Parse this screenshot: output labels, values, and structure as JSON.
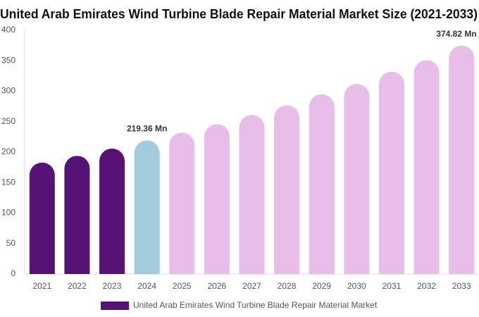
{
  "chart_data": {
    "type": "bar",
    "title": "United Arab Emirates Wind Turbine Blade Repair Material Market Size (2021-2033)",
    "categories": [
      "2021",
      "2022",
      "2023",
      "2024",
      "2025",
      "2026",
      "2027",
      "2028",
      "2029",
      "2030",
      "2031",
      "2032",
      "2033"
    ],
    "series": [
      {
        "name": "United Arab Emirates Wind Turbine Blade Repair Material Market",
        "color": "#561275",
        "values": [
          183,
          194,
          206,
          219.36,
          232,
          246,
          261,
          277,
          295,
          312,
          332,
          351,
          374.82
        ],
        "value_labels": [
          null,
          null,
          null,
          "219.36 Mn",
          null,
          null,
          null,
          null,
          null,
          null,
          null,
          null,
          "374.82 Mn"
        ],
        "bar_colors": [
          "#561275",
          "#561275",
          "#561275",
          "#a4cade",
          "#e8bde9",
          "#e8bde9",
          "#e8bde9",
          "#e8bde9",
          "#e8bde9",
          "#e8bde9",
          "#e8bde9",
          "#e8bde9",
          "#e8bde9"
        ]
      }
    ],
    "ylim": [
      0,
      400
    ],
    "yticks": [
      0,
      50,
      100,
      150,
      200,
      250,
      300,
      350,
      400
    ],
    "grid": false
  }
}
